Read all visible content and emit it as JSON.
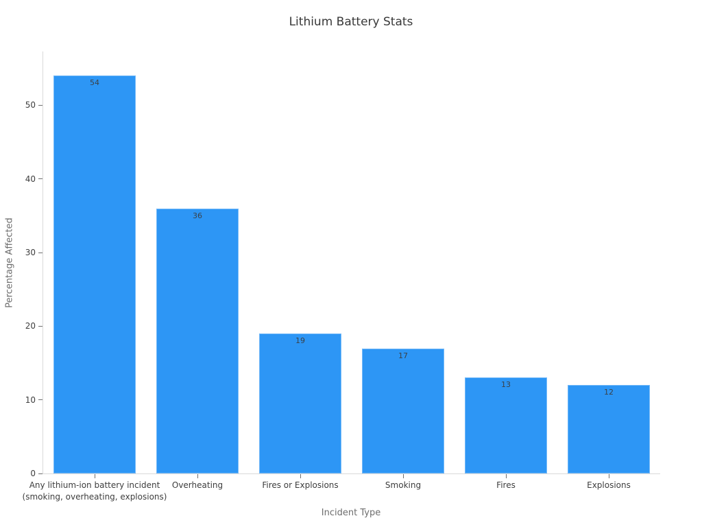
{
  "chart_data": {
    "type": "bar",
    "title": "Lithium Battery Stats",
    "xlabel": "Incident Type",
    "ylabel": "Percentage Affected",
    "categories": [
      "Any lithium-ion battery incident\n(smoking, overheating, explosions)",
      "Overheating",
      "Fires or Explosions",
      "Smoking",
      "Fires",
      "Explosions"
    ],
    "values": [
      54,
      36,
      19,
      17,
      13,
      12
    ],
    "value_label_position": "inside-top",
    "bar_color": "#2d96f5",
    "ylim": [
      0,
      57.3
    ],
    "yticks": [
      0,
      10,
      20,
      30,
      40,
      50
    ],
    "grid": false,
    "legend": false,
    "plot_background": "#ffffff"
  }
}
